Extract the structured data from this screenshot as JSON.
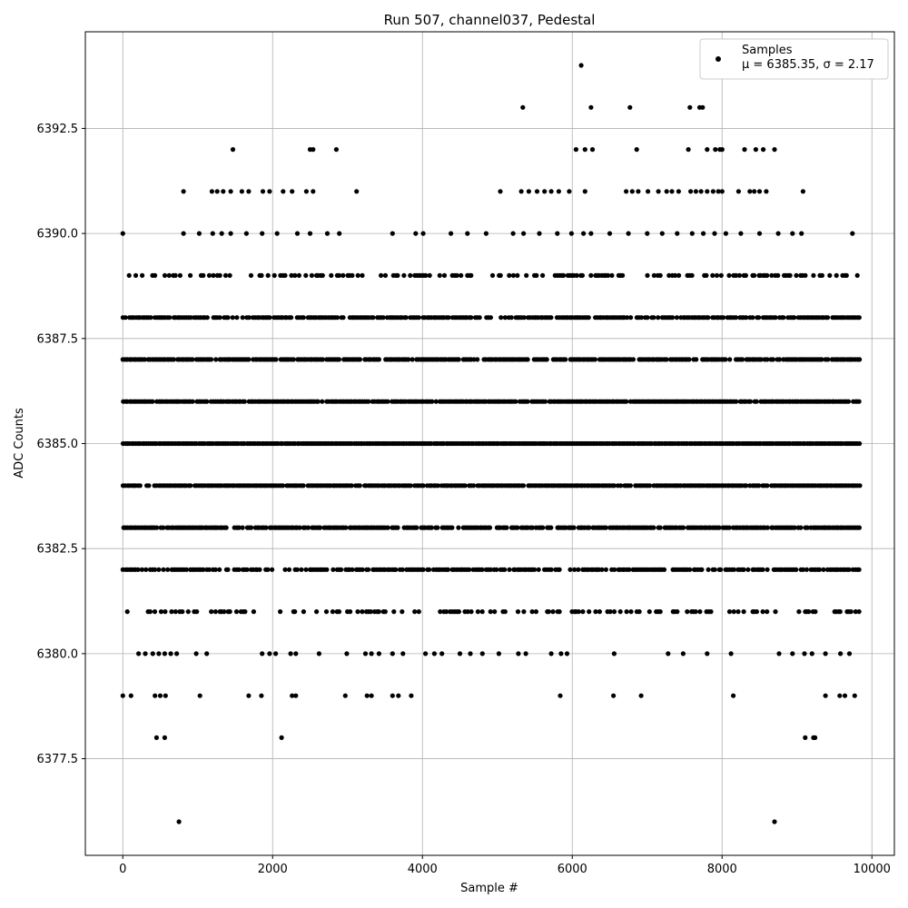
{
  "chart_data": {
    "type": "scatter",
    "title": "Run 507, channel037, Pedestal",
    "xlabel": "Sample #",
    "ylabel": "ADC Counts",
    "xlim": [
      -500,
      10300
    ],
    "ylim": [
      6375.2,
      6394.8
    ],
    "x_ticks": [
      0,
      2000,
      4000,
      6000,
      8000,
      10000
    ],
    "y_ticks": [
      6377.5,
      6380.0,
      6382.5,
      6385.0,
      6387.5,
      6390.0,
      6392.5
    ],
    "grid": true,
    "legend_position": "top-right",
    "series": [
      {
        "name": "Samples",
        "stats_label": "μ = 6385.35, σ = 2.17",
        "color": "#000000",
        "marker": "circle",
        "x_range": [
          0,
          9850
        ],
        "dense_levels": [
          6381,
          6382,
          6383,
          6384,
          6385,
          6386,
          6387,
          6388,
          6389
        ],
        "outliers": [
          {
            "x": 750,
            "y": 6376
          },
          {
            "x": 8700,
            "y": 6376
          },
          {
            "x": 450,
            "y": 6378
          },
          {
            "x": 560,
            "y": 6378
          },
          {
            "x": 2120,
            "y": 6378
          },
          {
            "x": 9110,
            "y": 6378
          },
          {
            "x": 9220,
            "y": 6378
          },
          {
            "x": 9240,
            "y": 6378
          },
          {
            "x": 0,
            "y": 6379
          },
          {
            "x": 110,
            "y": 6379
          },
          {
            "x": 430,
            "y": 6379
          },
          {
            "x": 500,
            "y": 6379
          },
          {
            "x": 570,
            "y": 6379
          },
          {
            "x": 1030,
            "y": 6379
          },
          {
            "x": 1680,
            "y": 6379
          },
          {
            "x": 1850,
            "y": 6379
          },
          {
            "x": 2260,
            "y": 6379
          },
          {
            "x": 2310,
            "y": 6379
          },
          {
            "x": 2970,
            "y": 6379
          },
          {
            "x": 3260,
            "y": 6379
          },
          {
            "x": 3320,
            "y": 6379
          },
          {
            "x": 3600,
            "y": 6379
          },
          {
            "x": 3680,
            "y": 6379
          },
          {
            "x": 3850,
            "y": 6379
          },
          {
            "x": 5840,
            "y": 6379
          },
          {
            "x": 6550,
            "y": 6379
          },
          {
            "x": 6920,
            "y": 6379
          },
          {
            "x": 8150,
            "y": 6379
          },
          {
            "x": 9380,
            "y": 6379
          },
          {
            "x": 9570,
            "y": 6379
          },
          {
            "x": 9640,
            "y": 6379
          },
          {
            "x": 9770,
            "y": 6379
          },
          {
            "x": 210,
            "y": 6380
          },
          {
            "x": 300,
            "y": 6380
          },
          {
            "x": 400,
            "y": 6380
          },
          {
            "x": 480,
            "y": 6380
          },
          {
            "x": 560,
            "y": 6380
          },
          {
            "x": 640,
            "y": 6380
          },
          {
            "x": 720,
            "y": 6380
          },
          {
            "x": 980,
            "y": 6380
          },
          {
            "x": 1120,
            "y": 6380
          },
          {
            "x": 1860,
            "y": 6380
          },
          {
            "x": 1960,
            "y": 6380
          },
          {
            "x": 2040,
            "y": 6380
          },
          {
            "x": 2240,
            "y": 6380
          },
          {
            "x": 2310,
            "y": 6380
          },
          {
            "x": 2620,
            "y": 6380
          },
          {
            "x": 2990,
            "y": 6380
          },
          {
            "x": 3240,
            "y": 6380
          },
          {
            "x": 3320,
            "y": 6380
          },
          {
            "x": 3420,
            "y": 6380
          },
          {
            "x": 3600,
            "y": 6380
          },
          {
            "x": 3740,
            "y": 6380
          },
          {
            "x": 4040,
            "y": 6380
          },
          {
            "x": 4160,
            "y": 6380
          },
          {
            "x": 4260,
            "y": 6380
          },
          {
            "x": 4500,
            "y": 6380
          },
          {
            "x": 4640,
            "y": 6380
          },
          {
            "x": 4800,
            "y": 6380
          },
          {
            "x": 5020,
            "y": 6380
          },
          {
            "x": 5280,
            "y": 6380
          },
          {
            "x": 5380,
            "y": 6380
          },
          {
            "x": 5720,
            "y": 6380
          },
          {
            "x": 5850,
            "y": 6380
          },
          {
            "x": 5930,
            "y": 6380
          },
          {
            "x": 6560,
            "y": 6380
          },
          {
            "x": 7280,
            "y": 6380
          },
          {
            "x": 7480,
            "y": 6380
          },
          {
            "x": 7800,
            "y": 6380
          },
          {
            "x": 8120,
            "y": 6380
          },
          {
            "x": 8760,
            "y": 6380
          },
          {
            "x": 8940,
            "y": 6380
          },
          {
            "x": 9100,
            "y": 6380
          },
          {
            "x": 9200,
            "y": 6380
          },
          {
            "x": 9380,
            "y": 6380
          },
          {
            "x": 9580,
            "y": 6380
          },
          {
            "x": 9700,
            "y": 6380
          },
          {
            "x": 0,
            "y": 6390
          },
          {
            "x": 810,
            "y": 6390
          },
          {
            "x": 1020,
            "y": 6390
          },
          {
            "x": 1200,
            "y": 6390
          },
          {
            "x": 1320,
            "y": 6390
          },
          {
            "x": 1440,
            "y": 6390
          },
          {
            "x": 1650,
            "y": 6390
          },
          {
            "x": 1860,
            "y": 6390
          },
          {
            "x": 2060,
            "y": 6390
          },
          {
            "x": 2330,
            "y": 6390
          },
          {
            "x": 2500,
            "y": 6390
          },
          {
            "x": 2730,
            "y": 6390
          },
          {
            "x": 2890,
            "y": 6390
          },
          {
            "x": 3600,
            "y": 6390
          },
          {
            "x": 3910,
            "y": 6390
          },
          {
            "x": 4010,
            "y": 6390
          },
          {
            "x": 4380,
            "y": 6390
          },
          {
            "x": 4600,
            "y": 6390
          },
          {
            "x": 4850,
            "y": 6390
          },
          {
            "x": 5210,
            "y": 6390
          },
          {
            "x": 5350,
            "y": 6390
          },
          {
            "x": 5560,
            "y": 6390
          },
          {
            "x": 5800,
            "y": 6390
          },
          {
            "x": 5990,
            "y": 6390
          },
          {
            "x": 6150,
            "y": 6390
          },
          {
            "x": 6250,
            "y": 6390
          },
          {
            "x": 6500,
            "y": 6390
          },
          {
            "x": 6750,
            "y": 6390
          },
          {
            "x": 7000,
            "y": 6390
          },
          {
            "x": 7200,
            "y": 6390
          },
          {
            "x": 7400,
            "y": 6390
          },
          {
            "x": 7600,
            "y": 6390
          },
          {
            "x": 7750,
            "y": 6390
          },
          {
            "x": 7900,
            "y": 6390
          },
          {
            "x": 8050,
            "y": 6390
          },
          {
            "x": 8250,
            "y": 6390
          },
          {
            "x": 8500,
            "y": 6390
          },
          {
            "x": 8750,
            "y": 6390
          },
          {
            "x": 8940,
            "y": 6390
          },
          {
            "x": 9060,
            "y": 6390
          },
          {
            "x": 9740,
            "y": 6390
          },
          {
            "x": 810,
            "y": 6391
          },
          {
            "x": 1190,
            "y": 6391
          },
          {
            "x": 1260,
            "y": 6391
          },
          {
            "x": 1340,
            "y": 6391
          },
          {
            "x": 1440,
            "y": 6391
          },
          {
            "x": 1590,
            "y": 6391
          },
          {
            "x": 1680,
            "y": 6391
          },
          {
            "x": 1870,
            "y": 6391
          },
          {
            "x": 1960,
            "y": 6391
          },
          {
            "x": 2140,
            "y": 6391
          },
          {
            "x": 2260,
            "y": 6391
          },
          {
            "x": 2450,
            "y": 6391
          },
          {
            "x": 2540,
            "y": 6391
          },
          {
            "x": 3120,
            "y": 6391
          },
          {
            "x": 5040,
            "y": 6391
          },
          {
            "x": 5320,
            "y": 6391
          },
          {
            "x": 5420,
            "y": 6391
          },
          {
            "x": 5530,
            "y": 6391
          },
          {
            "x": 5630,
            "y": 6391
          },
          {
            "x": 5720,
            "y": 6391
          },
          {
            "x": 5820,
            "y": 6391
          },
          {
            "x": 5960,
            "y": 6391
          },
          {
            "x": 6170,
            "y": 6391
          },
          {
            "x": 6720,
            "y": 6391
          },
          {
            "x": 6800,
            "y": 6391
          },
          {
            "x": 6880,
            "y": 6391
          },
          {
            "x": 7010,
            "y": 6391
          },
          {
            "x": 7150,
            "y": 6391
          },
          {
            "x": 7260,
            "y": 6391
          },
          {
            "x": 7330,
            "y": 6391
          },
          {
            "x": 7420,
            "y": 6391
          },
          {
            "x": 7580,
            "y": 6391
          },
          {
            "x": 7650,
            "y": 6391
          },
          {
            "x": 7720,
            "y": 6391
          },
          {
            "x": 7800,
            "y": 6391
          },
          {
            "x": 7880,
            "y": 6391
          },
          {
            "x": 7950,
            "y": 6391
          },
          {
            "x": 8000,
            "y": 6391
          },
          {
            "x": 8220,
            "y": 6391
          },
          {
            "x": 8370,
            "y": 6391
          },
          {
            "x": 8430,
            "y": 6391
          },
          {
            "x": 8500,
            "y": 6391
          },
          {
            "x": 8590,
            "y": 6391
          },
          {
            "x": 9080,
            "y": 6391
          },
          {
            "x": 1470,
            "y": 6392
          },
          {
            "x": 2500,
            "y": 6392
          },
          {
            "x": 2540,
            "y": 6392
          },
          {
            "x": 2850,
            "y": 6392
          },
          {
            "x": 6050,
            "y": 6392
          },
          {
            "x": 6170,
            "y": 6392
          },
          {
            "x": 6270,
            "y": 6392
          },
          {
            "x": 6860,
            "y": 6392
          },
          {
            "x": 7550,
            "y": 6392
          },
          {
            "x": 7800,
            "y": 6392
          },
          {
            "x": 7910,
            "y": 6392
          },
          {
            "x": 7970,
            "y": 6392
          },
          {
            "x": 8000,
            "y": 6392
          },
          {
            "x": 8300,
            "y": 6392
          },
          {
            "x": 8450,
            "y": 6392
          },
          {
            "x": 8550,
            "y": 6392
          },
          {
            "x": 8700,
            "y": 6392
          },
          {
            "x": 5340,
            "y": 6393
          },
          {
            "x": 6250,
            "y": 6393
          },
          {
            "x": 6770,
            "y": 6393
          },
          {
            "x": 7570,
            "y": 6393
          },
          {
            "x": 7700,
            "y": 6393
          },
          {
            "x": 7740,
            "y": 6393
          },
          {
            "x": 6120,
            "y": 6394
          }
        ]
      }
    ]
  }
}
